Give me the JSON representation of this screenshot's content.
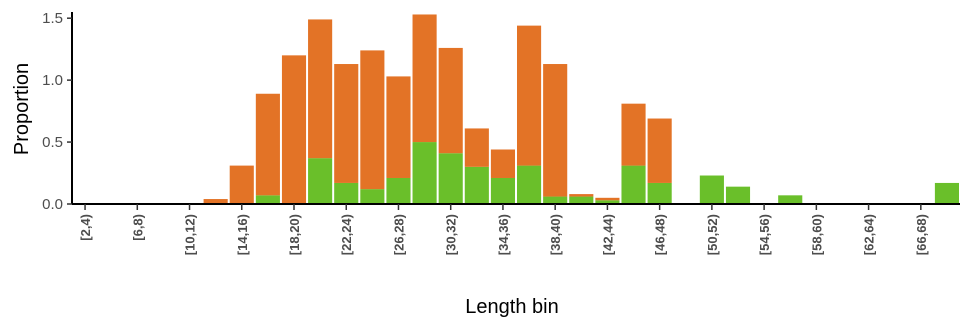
{
  "chart_data": {
    "type": "bar",
    "stacked": true,
    "xlabel": "Length bin",
    "ylabel": "Proportion",
    "ylim": [
      0,
      1.55
    ],
    "yticks": [
      "0.0",
      "0.5",
      "1.0",
      "1.5"
    ],
    "ytick_values": [
      0,
      0.5,
      1.0,
      1.5
    ],
    "grid": false,
    "categories": [
      "[2,4)",
      "[4,6)",
      "[6,8)",
      "[8,10)",
      "[10,12)",
      "[12,14)",
      "[14,16)",
      "[16,18)",
      "[18,20)",
      "[20,22)",
      "[22,24)",
      "[24,26)",
      "[26,28)",
      "[28,30)",
      "[30,32)",
      "[32,34)",
      "[34,36)",
      "[36,38)",
      "[38,40)",
      "[40,42)",
      "[42,44)",
      "[44,46)",
      "[46,48)",
      "[48,50)",
      "[50,52)",
      "[52,54)",
      "[54,56)",
      "[56,58)",
      "[58,60)",
      "[60,62)",
      "[62,64)",
      "[64,66)",
      "[66,68)",
      "[68,70)"
    ],
    "tick_labels": [
      "[2,4)",
      "[6,8)",
      "[10,12)",
      "[14,16)",
      "[18,20)",
      "[22,24)",
      "[26,28)",
      "[30,32)",
      "[34,36)",
      "[38,40)",
      "[42,44)",
      "[46,48)",
      "[50,52)",
      "[54,56)",
      "[58,60)",
      "[62,64)",
      "[66,68)"
    ],
    "series": [
      {
        "color": "#6abf2a",
        "values": [
          0,
          0,
          0,
          0,
          0,
          0,
          0,
          0.07,
          0,
          0.37,
          0.17,
          0.12,
          0.21,
          0.5,
          0.41,
          0.3,
          0.21,
          0.31,
          0.06,
          0.06,
          0.03,
          0.31,
          0.17,
          0,
          0.23,
          0.14,
          0,
          0.07,
          0,
          0,
          0,
          0,
          0,
          0.17
        ]
      },
      {
        "color": "#e37326",
        "values": [
          0,
          0,
          0,
          0,
          0,
          0.04,
          0.31,
          0.82,
          1.2,
          1.12,
          0.96,
          1.12,
          0.82,
          1.03,
          0.85,
          0.31,
          0.23,
          1.13,
          1.07,
          0.02,
          0.02,
          0.5,
          0.52,
          0,
          0,
          0,
          0,
          0,
          0,
          0,
          0,
          0,
          0,
          0
        ]
      }
    ]
  }
}
